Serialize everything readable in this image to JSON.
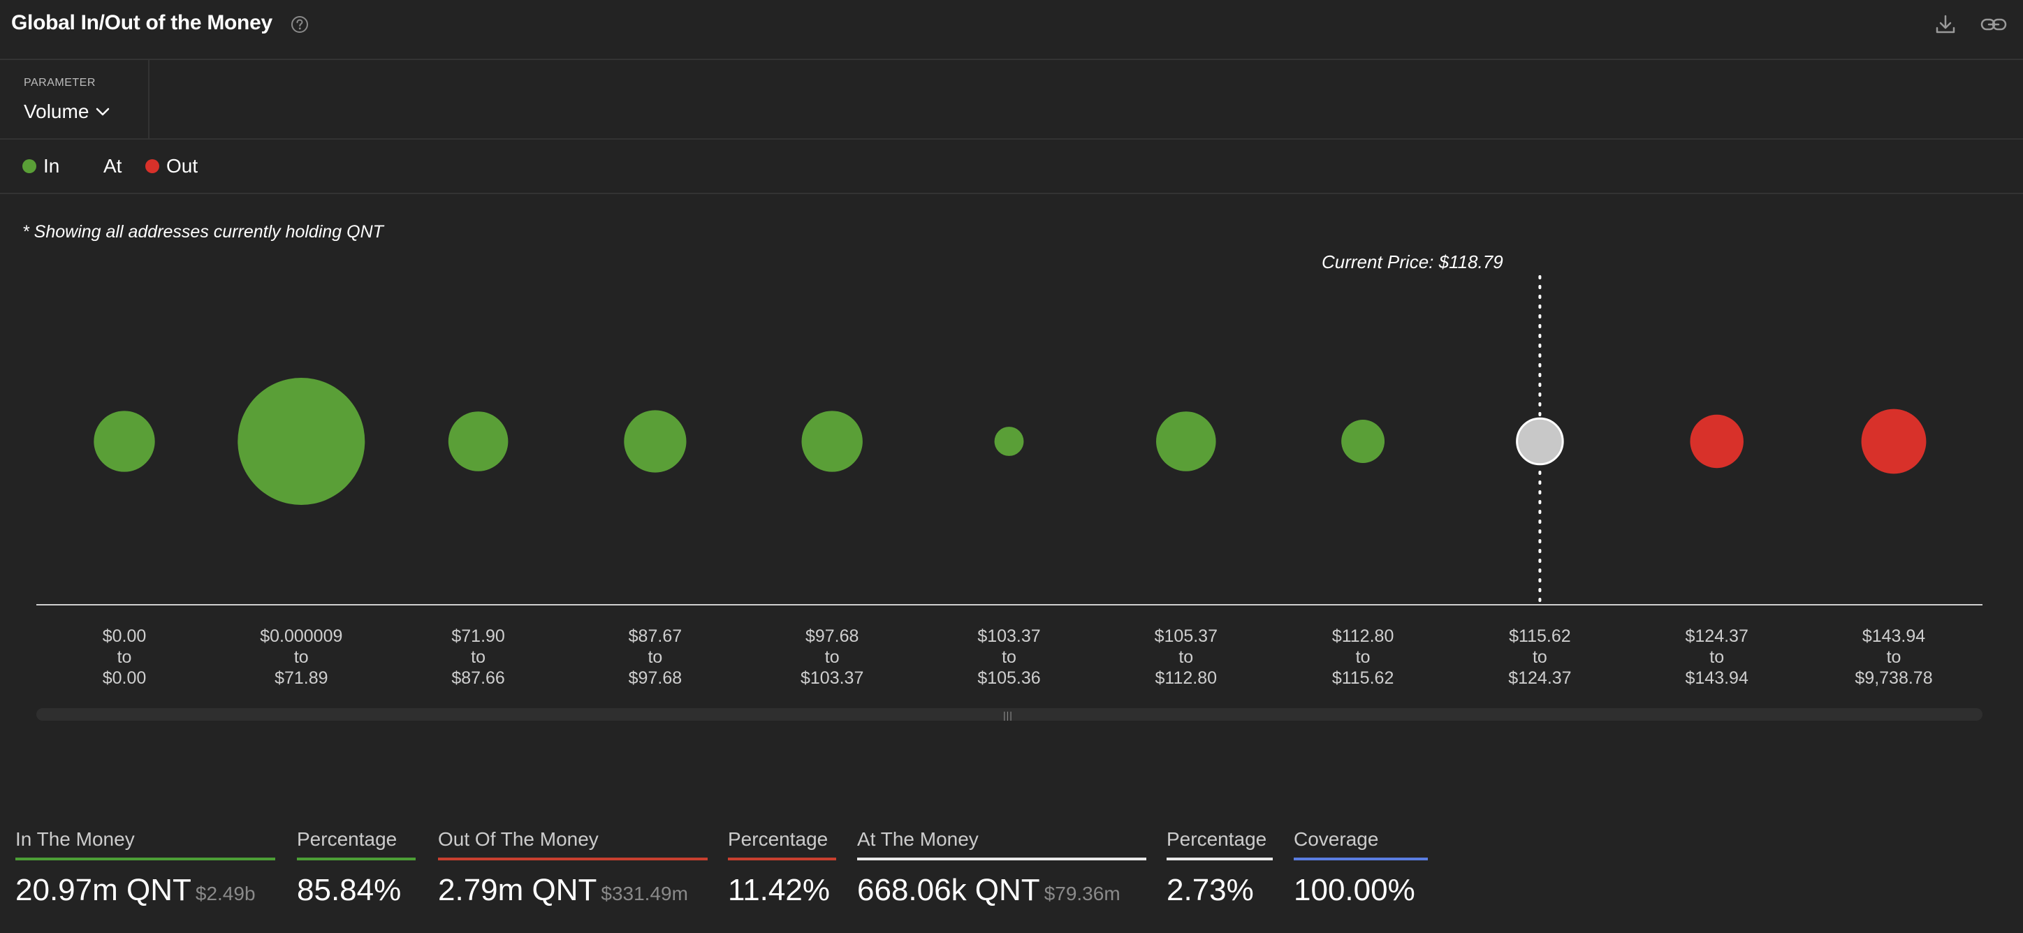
{
  "header": {
    "title": "Global In/Out of the Money",
    "help_icon": "question-circle-icon",
    "download_icon": "download-icon",
    "link_icon": "link-icon"
  },
  "parameter": {
    "label": "PARAMETER",
    "value": "Volume"
  },
  "legend": {
    "in": "In",
    "at": "At",
    "out": "Out"
  },
  "colors": {
    "in": "#5a9f37",
    "at": "#c8c8c8",
    "out": "#d8312a",
    "coverage": "#5a7de0"
  },
  "note": "* Showing all addresses currently holding QNT",
  "current_price_label": "Current Price: $118.79",
  "chart_data": {
    "type": "scatter",
    "categories": [
      {
        "from": "$0.00",
        "to": "$0.00"
      },
      {
        "from": "$0.000009",
        "to": "$71.89"
      },
      {
        "from": "$71.90",
        "to": "$87.66"
      },
      {
        "from": "$87.67",
        "to": "$97.68"
      },
      {
        "from": "$97.68",
        "to": "$103.37"
      },
      {
        "from": "$103.37",
        "to": "$105.36"
      },
      {
        "from": "$105.37",
        "to": "$112.80"
      },
      {
        "from": "$112.80",
        "to": "$115.62"
      },
      {
        "from": "$115.62",
        "to": "$124.37"
      },
      {
        "from": "$124.37",
        "to": "$143.94"
      },
      {
        "from": "$143.94",
        "to": "$9,738.78"
      }
    ],
    "bubble_size": [
      0.48,
      1.0,
      0.47,
      0.49,
      0.48,
      0.23,
      0.47,
      0.34,
      0.36,
      0.42,
      0.51
    ],
    "status": [
      "in",
      "in",
      "in",
      "in",
      "in",
      "in",
      "in",
      "in",
      "at",
      "out",
      "out"
    ],
    "connector_word": "to",
    "current_price": 118.79,
    "current_price_bin": 8
  },
  "stats": [
    {
      "label": "In The Money",
      "value": "20.97m QNT",
      "sub": "$2.49b",
      "accent": "in"
    },
    {
      "label": "Percentage",
      "value": "85.84%",
      "sub": "",
      "accent": "in"
    },
    {
      "label": "Out Of The Money",
      "value": "2.79m QNT",
      "sub": "$331.49m",
      "accent": "out"
    },
    {
      "label": "Percentage",
      "value": "11.42%",
      "sub": "",
      "accent": "out"
    },
    {
      "label": "At The Money",
      "value": "668.06k QNT",
      "sub": "$79.36m",
      "accent": "white"
    },
    {
      "label": "Percentage",
      "value": "2.73%",
      "sub": "",
      "accent": "white"
    },
    {
      "label": "Coverage",
      "value": "100.00%",
      "sub": "",
      "accent": "coverage"
    }
  ]
}
